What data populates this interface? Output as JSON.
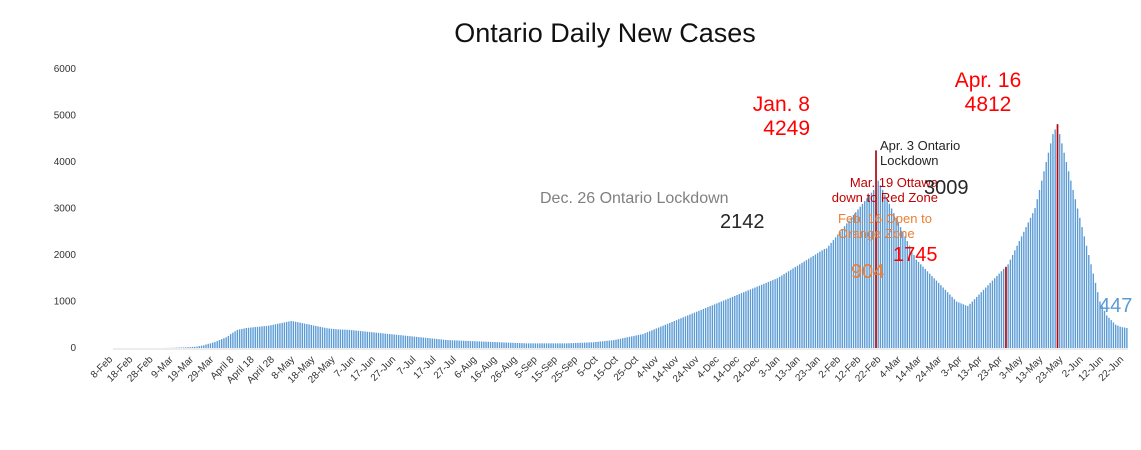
{
  "chart_data": {
    "type": "bar",
    "title": "Ontario Daily New Cases",
    "xlabel": "",
    "ylabel": "",
    "ylim": [
      0,
      6000
    ],
    "y_ticks": [
      0,
      1000,
      2000,
      3000,
      4000,
      5000,
      6000
    ],
    "grid": false,
    "legend": "none",
    "bar_color": "#5b9bd5",
    "highlight_color": "#c00000",
    "x_tick_labels": [
      "8-Feb",
      "18-Feb",
      "28-Feb",
      "9-Mar",
      "19-Mar",
      "29-Mar",
      "April 8",
      "April 18",
      "April 28",
      "8-May",
      "18-May",
      "28-May",
      "7-Jun",
      "17-Jun",
      "27-Jun",
      "7-Jul",
      "17-Jul",
      "27-Jul",
      "6-Aug",
      "16-Aug",
      "26-Aug",
      "5-Sep",
      "15-Sep",
      "25-Sep",
      "5-Oct",
      "15-Oct",
      "25-Oct",
      "4-Nov",
      "14-Nov",
      "24-Nov",
      "4-Dec",
      "14-Dec",
      "24-Dec",
      "3-Jan",
      "13-Jan",
      "23-Jan",
      "2-Feb",
      "12-Feb",
      "22-Feb",
      "4-Mar",
      "14-Mar",
      "24-Mar",
      "3-Apr",
      "13-Apr",
      "23-Apr",
      "3-May",
      "13-May",
      "23-May",
      "2-Jun",
      "12-Jun",
      "22-Jun"
    ],
    "series": [
      {
        "start_date": "2020-02-08",
        "values": [
          0,
          0,
          0,
          0,
          0,
          0,
          0,
          0,
          0,
          0,
          0,
          0,
          0,
          0,
          0,
          0,
          0,
          0,
          0,
          0,
          0,
          0,
          1,
          1,
          2,
          3,
          4,
          6,
          8,
          10,
          11,
          13,
          15,
          18,
          20,
          22,
          25,
          30,
          40,
          50,
          60,
          75,
          90,
          100,
          115,
          130,
          150,
          170,
          190,
          210,
          230,
          260,
          300,
          330,
          360,
          390,
          400,
          410,
          420,
          430,
          435,
          440,
          445,
          450,
          455,
          460,
          465,
          470,
          475,
          480,
          490,
          500,
          510,
          520,
          530,
          540,
          550,
          560,
          570,
          580,
          575,
          565,
          555,
          545,
          535,
          525,
          515,
          505,
          495,
          485,
          475,
          465,
          455,
          445,
          435,
          425,
          420,
          415,
          410,
          405,
          400,
          398,
          396,
          394,
          392,
          390,
          385,
          380,
          375,
          370,
          365,
          360,
          355,
          350,
          345,
          340,
          335,
          330,
          325,
          320,
          315,
          310,
          305,
          300,
          295,
          290,
          285,
          280,
          275,
          270,
          265,
          260,
          255,
          250,
          245,
          240,
          235,
          230,
          225,
          220,
          215,
          210,
          205,
          200,
          195,
          190,
          185,
          180,
          175,
          170,
          168,
          166,
          164,
          162,
          160,
          158,
          156,
          154,
          152,
          150,
          148,
          146,
          144,
          142,
          140,
          138,
          136,
          134,
          132,
          130,
          128,
          126,
          124,
          122,
          120,
          118,
          116,
          114,
          112,
          110,
          108,
          106,
          104,
          102,
          100,
          100,
          100,
          100,
          100,
          100,
          100,
          100,
          100,
          100,
          100,
          100,
          100,
          100,
          100,
          100,
          100,
          100,
          100,
          102,
          104,
          106,
          108,
          110,
          112,
          114,
          116,
          118,
          120,
          122,
          125,
          130,
          135,
          140,
          145,
          150,
          155,
          160,
          165,
          170,
          180,
          190,
          200,
          210,
          220,
          230,
          240,
          250,
          260,
          270,
          280,
          290,
          300,
          320,
          340,
          360,
          380,
          400,
          420,
          440,
          460,
          480,
          500,
          520,
          540,
          560,
          580,
          600,
          620,
          640,
          660,
          680,
          700,
          720,
          740,
          760,
          780,
          800,
          820,
          840,
          860,
          880,
          900,
          920,
          940,
          960,
          980,
          1000,
          1020,
          1040,
          1060,
          1080,
          1100,
          1120,
          1140,
          1160,
          1180,
          1200,
          1220,
          1240,
          1260,
          1280,
          1300,
          1320,
          1340,
          1360,
          1380,
          1400,
          1420,
          1440,
          1460,
          1480,
          1500,
          1530,
          1560,
          1590,
          1620,
          1650,
          1680,
          1710,
          1740,
          1770,
          1800,
          1830,
          1860,
          1890,
          1920,
          1950,
          1980,
          2010,
          2040,
          2070,
          2100,
          2130,
          2142,
          2200,
          2260,
          2320,
          2380,
          2440,
          2500,
          2560,
          2620,
          2680,
          2740,
          2800,
          2860,
          2920,
          2980,
          3040,
          3100,
          3160,
          3220,
          3280,
          3340,
          3400,
          4249,
          3600,
          3500,
          3400,
          3300,
          3200,
          3100,
          3000,
          2900,
          2800,
          2700,
          2600,
          2500,
          2400,
          2300,
          2200,
          2100,
          2000,
          1900,
          1850,
          1800,
          1750,
          1700,
          1650,
          1600,
          1550,
          1500,
          1450,
          1400,
          1350,
          1300,
          1250,
          1200,
          1150,
          1100,
          1050,
          1000,
          980,
          960,
          940,
          920,
          904,
          950,
          1000,
          1050,
          1100,
          1150,
          1200,
          1250,
          1300,
          1350,
          1400,
          1450,
          1500,
          1550,
          1600,
          1650,
          1700,
          1745,
          1800,
          1900,
          2000,
          2100,
          2200,
          2300,
          2400,
          2500,
          2600,
          2700,
          2800,
          2900,
          3009,
          3200,
          3400,
          3600,
          3800,
          4000,
          4200,
          4400,
          4600,
          4700,
          4812,
          4600,
          4400,
          4200,
          4000,
          3800,
          3600,
          3400,
          3200,
          3000,
          2800,
          2600,
          2400,
          2200,
          2000,
          1800,
          1600,
          1400,
          1200,
          1000,
          900,
          800,
          700,
          650,
          600,
          550,
          500,
          480,
          460,
          447,
          440,
          430
        ]
      }
    ],
    "annotations": [
      {
        "lines": [
          "Dec. 26 Ontario Lockdown"
        ],
        "color": "#808080",
        "size": 16
      },
      {
        "lines": [
          "2142"
        ],
        "color": "#262626",
        "size": 20
      },
      {
        "lines": [
          "Jan. 8",
          "4249"
        ],
        "color": "#ff0000",
        "size": 21
      },
      {
        "lines": [
          "Mar. 19 Ottawa",
          "down to Red Zone"
        ],
        "color": "#c00000",
        "size": 13
      },
      {
        "lines": [
          "Feb. 16 Open to",
          "Orange Zone"
        ],
        "color": "#ed7d31",
        "size": 13
      },
      {
        "lines": [
          "904"
        ],
        "color": "#ed7d31",
        "size": 20
      },
      {
        "lines": [
          "1745"
        ],
        "color": "#ff0000",
        "size": 20
      },
      {
        "lines": [
          "Apr. 3 Ontario",
          "Lockdown"
        ],
        "color": "#262626",
        "size": 13
      },
      {
        "lines": [
          "3009"
        ],
        "color": "#262626",
        "size": 20
      },
      {
        "lines": [
          "Apr. 16",
          "4812"
        ],
        "color": "#ff0000",
        "size": 21
      },
      {
        "lines": [
          "447"
        ],
        "color": "#5b9bd5",
        "size": 20
      }
    ]
  }
}
